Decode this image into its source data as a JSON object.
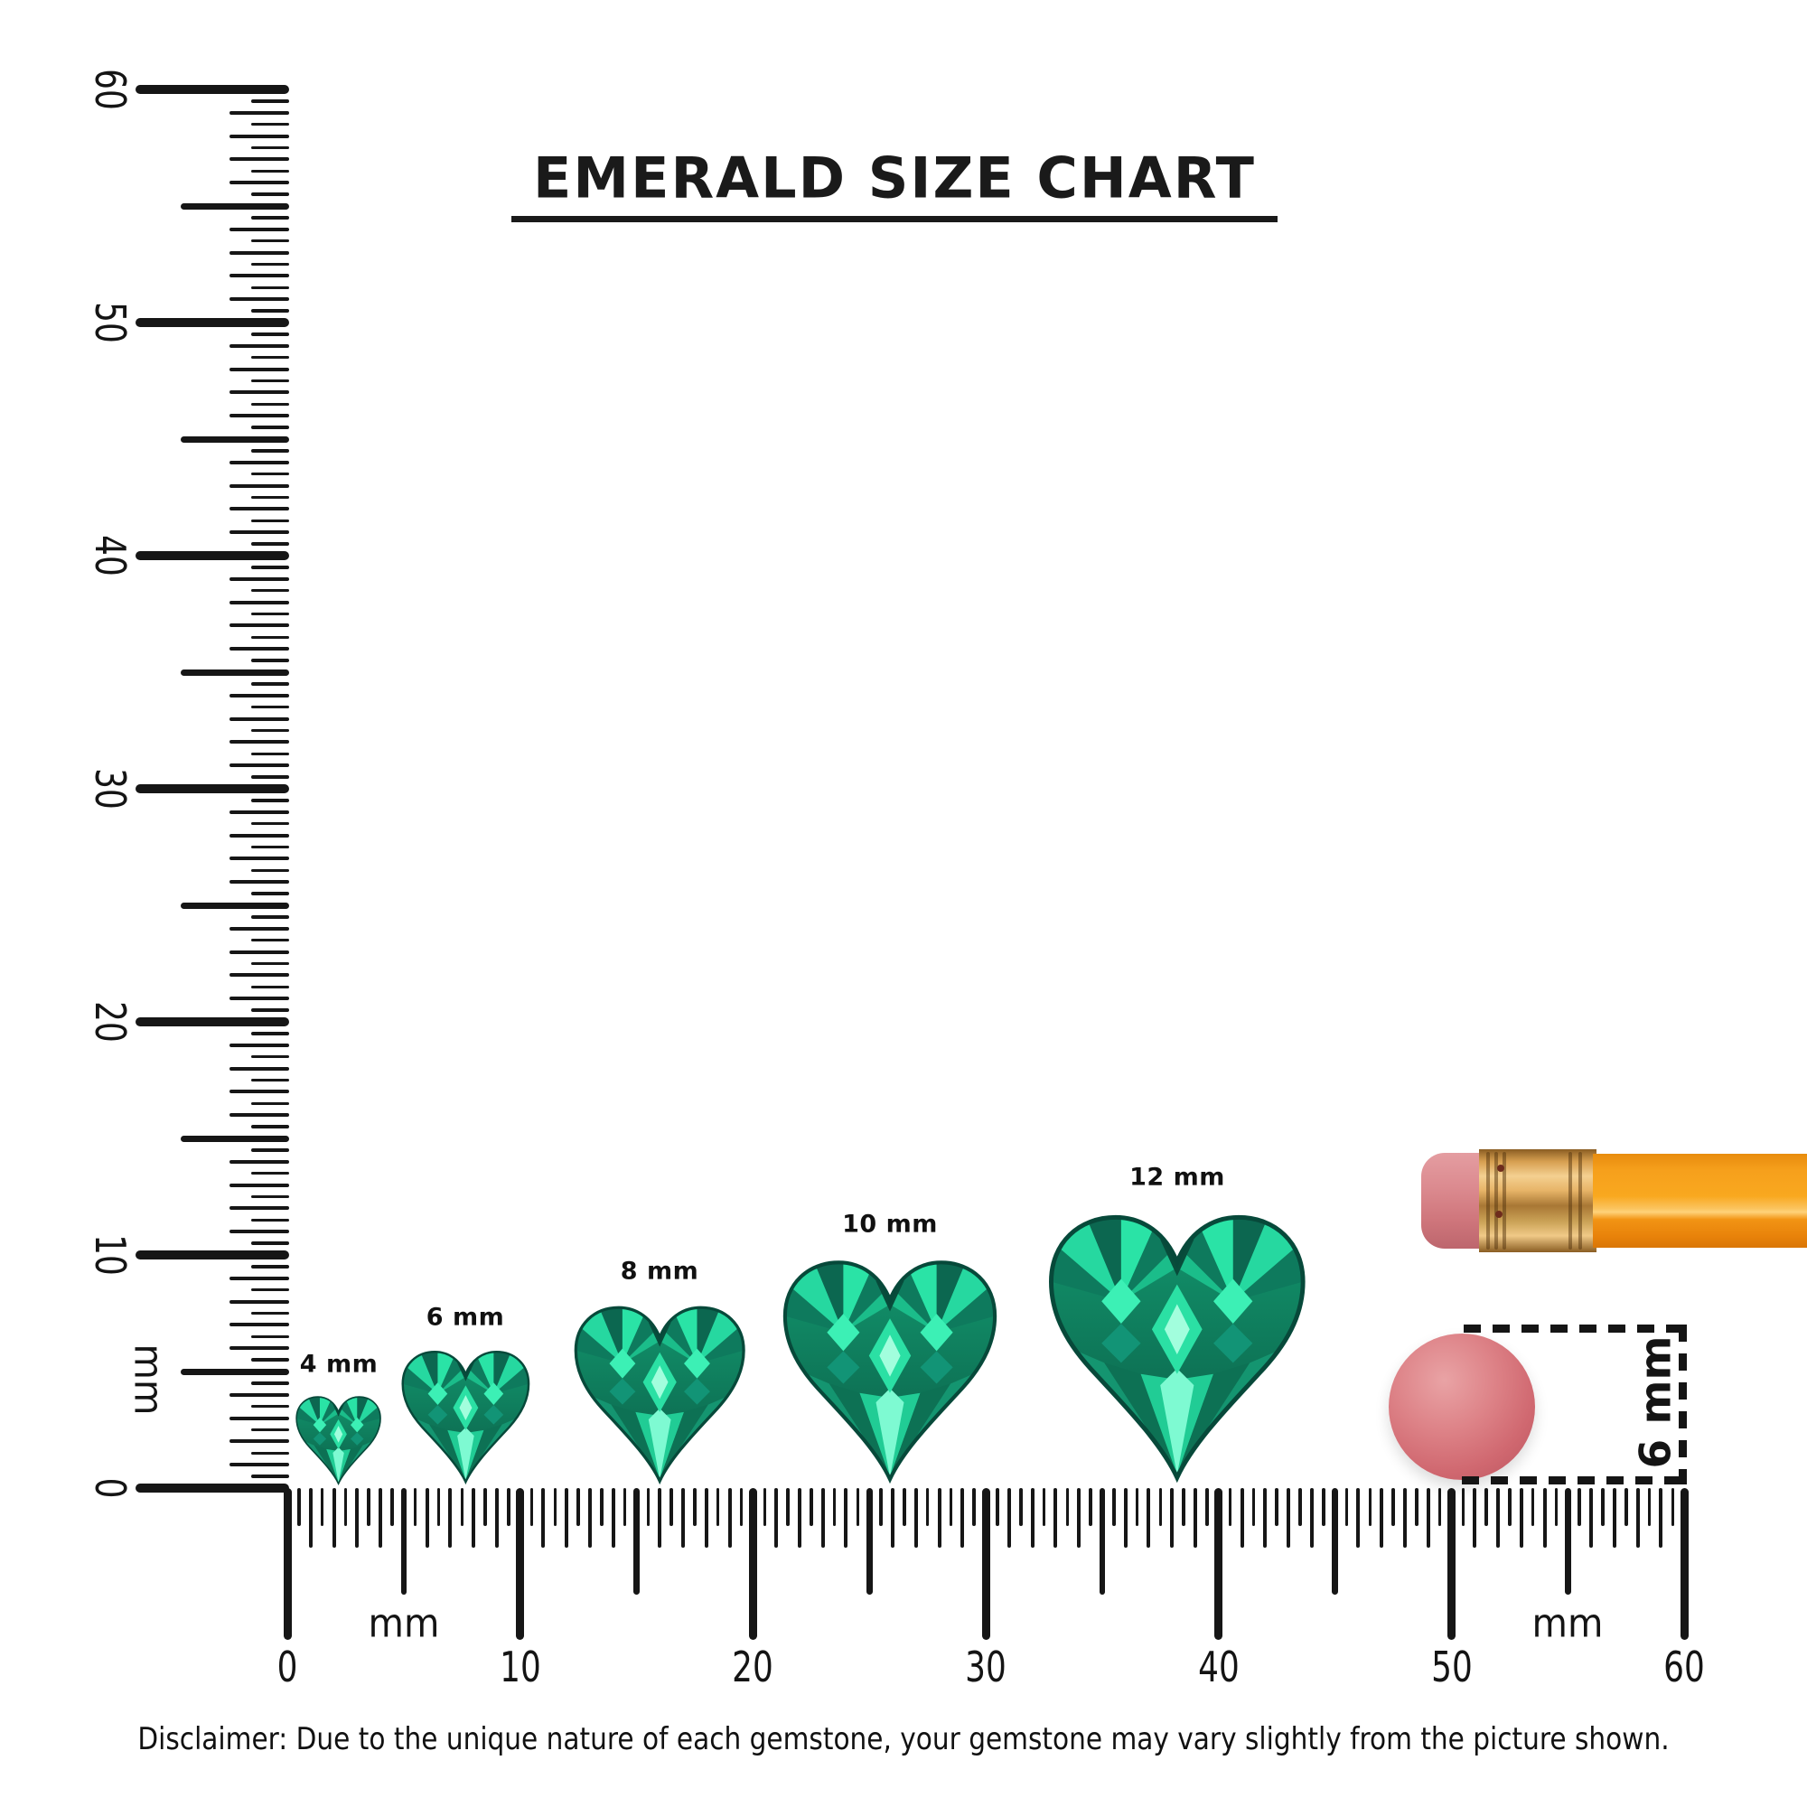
{
  "title": {
    "text": "EMERALD SIZE CHART"
  },
  "vertical_ruler": {
    "unit_label": "mm",
    "min_mm": 0,
    "max_mm": 60,
    "tick_labels": [
      "0",
      "10",
      "20",
      "30",
      "40",
      "50",
      "60"
    ]
  },
  "horizontal_ruler": {
    "unit_labels": [
      "mm",
      "mm"
    ],
    "min_mm": 0,
    "max_mm": 60,
    "tick_labels": [
      "0",
      "10",
      "20",
      "30",
      "40",
      "50",
      "60"
    ]
  },
  "gems": [
    {
      "label": "4 mm",
      "size_mm": 4
    },
    {
      "label": "6 mm",
      "size_mm": 6
    },
    {
      "label": "8 mm",
      "size_mm": 8
    },
    {
      "label": "10 mm",
      "size_mm": 10
    },
    {
      "label": "12 mm",
      "size_mm": 12
    }
  ],
  "reference_eraser": {
    "diameter_label": "6 mm"
  },
  "disclaimer": "Disclaimer: Due to the unique nature of each gemstone, your gemstone may vary slightly from the picture shown.",
  "colors": {
    "gem_base": "#13986f",
    "gem_deep": "#0a5b45",
    "gem_bright": "#2fe3a7",
    "ruler": "#161616",
    "pencil_body": "#f6a01c",
    "pencil_ferrule": "#e7b468",
    "pencil_eraser": "#dc8b90",
    "eraser_disc": "#d06870"
  }
}
